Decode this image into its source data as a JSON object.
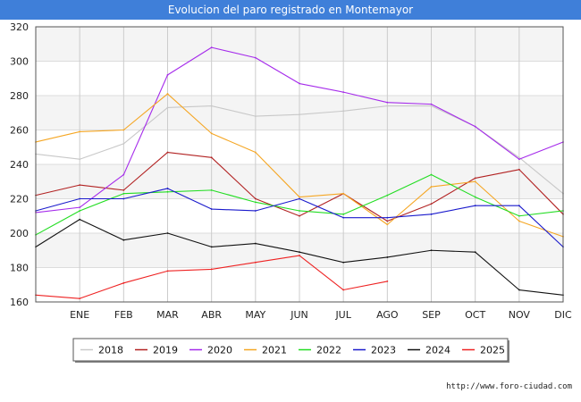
{
  "header": {
    "title": "Evolucion del paro registrado en Montemayor"
  },
  "footer": {
    "source": "http://www.foro-ciudad.com"
  },
  "chart_data": {
    "type": "line",
    "title": "Evolucion del paro registrado en Montemayor",
    "xlabel": "",
    "ylabel": "",
    "x_ticks": [
      "",
      "ENE",
      "FEB",
      "MAR",
      "ABR",
      "MAY",
      "JUN",
      "JUL",
      "AGO",
      "SEP",
      "OCT",
      "NOV",
      "DIC"
    ],
    "ylim": [
      160,
      320
    ],
    "y_ticks": [
      160,
      180,
      200,
      220,
      240,
      260,
      280,
      300,
      320
    ],
    "grid": true,
    "legend_position": "bottom",
    "series": [
      {
        "name": "2018",
        "color": "#c8c8c8",
        "values": [
          246,
          243,
          252,
          273,
          274,
          268,
          269,
          271,
          274,
          274,
          262,
          244,
          223
        ]
      },
      {
        "name": "2019",
        "color": "#b22222",
        "values": [
          222,
          228,
          225,
          247,
          244,
          220,
          210,
          223,
          207,
          217,
          232,
          237,
          211
        ]
      },
      {
        "name": "2020",
        "color": "#a52aeb",
        "values": [
          212,
          215,
          234,
          292,
          308,
          302,
          287,
          282,
          276,
          275,
          262,
          243,
          253
        ]
      },
      {
        "name": "2021",
        "color": "#f5a623",
        "values": [
          253,
          259,
          260,
          281,
          258,
          247,
          221,
          223,
          205,
          227,
          230,
          207,
          198
        ]
      },
      {
        "name": "2022",
        "color": "#22dd22",
        "values": [
          199,
          213,
          223,
          224,
          225,
          218,
          213,
          211,
          222,
          234,
          221,
          210,
          213
        ]
      },
      {
        "name": "2023",
        "color": "#1a1acc",
        "values": [
          213,
          220,
          220,
          226,
          214,
          213,
          220,
          209,
          209,
          211,
          216,
          216,
          192
        ]
      },
      {
        "name": "2024",
        "color": "#111111",
        "values": [
          192,
          208,
          196,
          200,
          192,
          194,
          189,
          183,
          186,
          190,
          189,
          167,
          164
        ]
      },
      {
        "name": "2025",
        "color": "#ee2222",
        "values": [
          164,
          162,
          171,
          178,
          179,
          183,
          187,
          167,
          172,
          null,
          null,
          null,
          null
        ]
      }
    ]
  }
}
